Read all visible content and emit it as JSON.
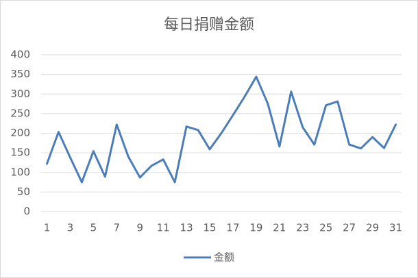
{
  "chart_data": {
    "type": "line",
    "title": "每日捐赠金额",
    "categories": [
      "1",
      null,
      "3",
      null,
      "5",
      null,
      "7",
      null,
      "9",
      null,
      "11",
      null,
      "13",
      null,
      "15",
      null,
      "17",
      null,
      "19",
      null,
      "21",
      null,
      "23",
      null,
      "25",
      null,
      "27",
      null,
      "29",
      null,
      "31"
    ],
    "series": [
      {
        "name": "金额",
        "color": "#4a7dba",
        "values": [
          122,
          203,
          138,
          75,
          154,
          89,
          222,
          140,
          87,
          117,
          133,
          75,
          217,
          208,
          159,
          200,
          246,
          293,
          344,
          275,
          166,
          306,
          215,
          171,
          271,
          281,
          171,
          161,
          190,
          162,
          222
        ]
      }
    ],
    "ylim": [
      0,
      400
    ],
    "yticks": [
      0,
      50,
      100,
      150,
      200,
      250,
      300,
      350,
      400
    ],
    "grid": true,
    "legend": "bottom"
  }
}
